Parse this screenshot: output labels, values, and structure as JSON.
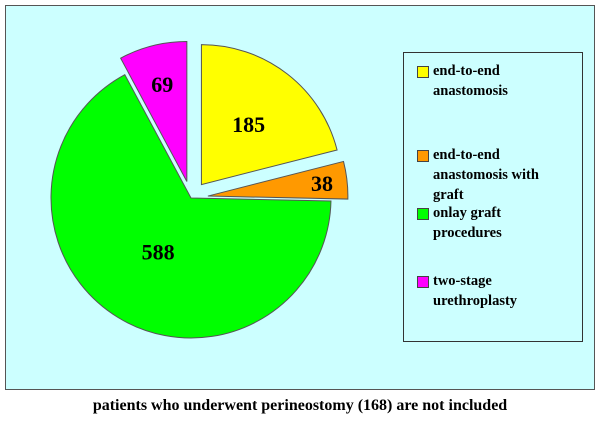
{
  "chart_data": {
    "type": "pie",
    "exploded": true,
    "slices": [
      {
        "label": "end-to-end anastomosis",
        "value": 185,
        "color": "#ffff00"
      },
      {
        "label": "end-to-end anastomosis with graft",
        "value": 38,
        "color": "#ff9900"
      },
      {
        "label": "onlay graft procedures",
        "value": 588,
        "color": "#00ff00"
      },
      {
        "label": "two-stage urethroplasty",
        "value": 69,
        "color": "#ff00ff"
      }
    ],
    "legend_lines": [
      [
        "end-to-end",
        "anastomosis"
      ],
      [
        "end-to-end",
        "anastomosis with",
        "graft"
      ],
      [
        "onlay graft",
        "procedures"
      ],
      [
        "two-stage",
        "urethroplasty"
      ]
    ],
    "legend_placement": "right",
    "caption": "patients who underwent perineostomy (168) are not included"
  }
}
